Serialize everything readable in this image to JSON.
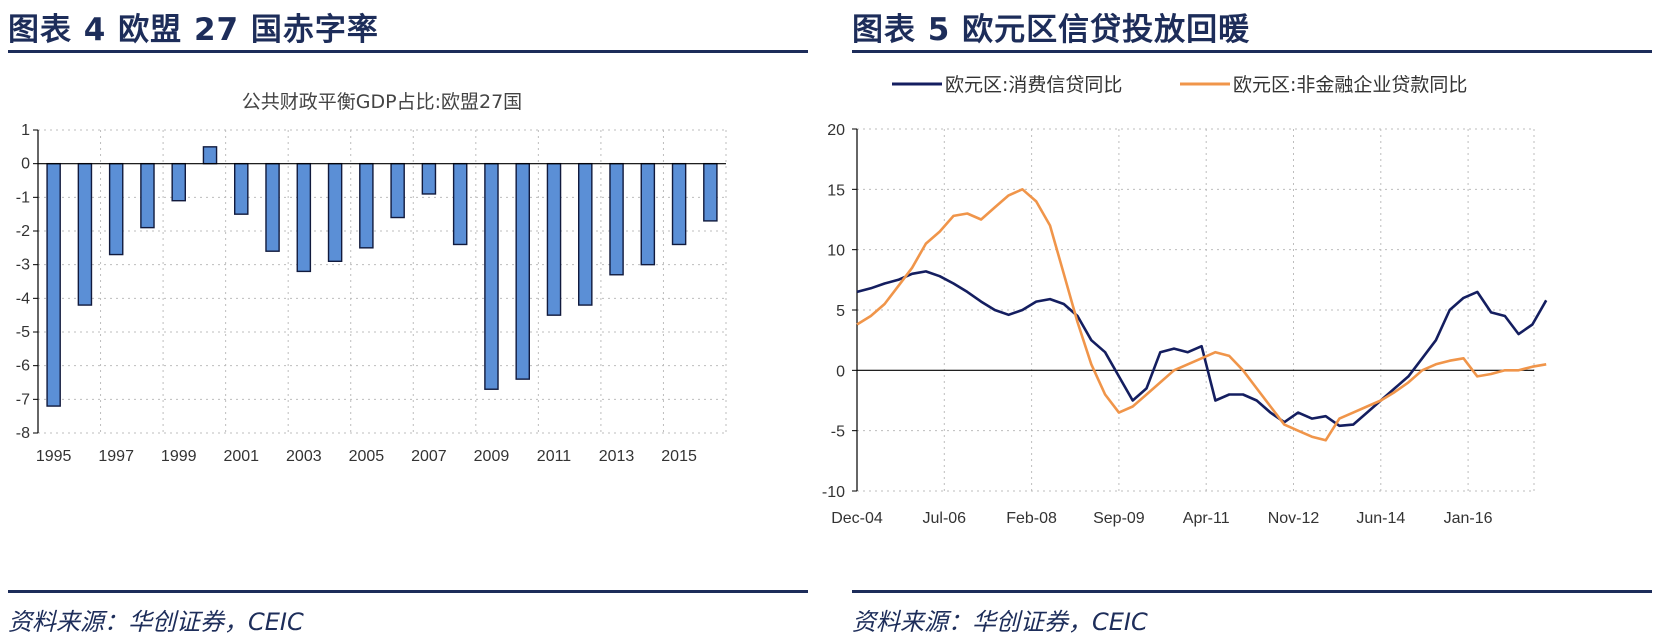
{
  "left": {
    "heading": "图表 4 欧盟 27 国赤字率",
    "source": "资料来源：华创证券，CEIC"
  },
  "right": {
    "heading": "图表 5 欧元区信贷投放回暖",
    "source": "资料来源：华创证券，CEIC"
  },
  "colors": {
    "bar": "#5b8fd6",
    "bar_edge": "#111a3d",
    "navy": "#141e60",
    "orange": "#f0954a",
    "rule": "#1d2d5a"
  },
  "chart_data": [
    {
      "type": "bar",
      "title": "公共财政平衡GDP占比:欧盟27国",
      "categories": [
        "1995",
        "1996",
        "1997",
        "1998",
        "1999",
        "2000",
        "2001",
        "2002",
        "2003",
        "2004",
        "2005",
        "2006",
        "2007",
        "2008",
        "2009",
        "2010",
        "2011",
        "2012",
        "2013",
        "2014",
        "2015",
        "2016"
      ],
      "tick_labels": [
        "1995",
        "1997",
        "1999",
        "2001",
        "2003",
        "2005",
        "2007",
        "2009",
        "2011",
        "2013",
        "2015"
      ],
      "values": [
        -7.2,
        -4.2,
        -2.7,
        -1.9,
        -1.1,
        0.5,
        -1.5,
        -2.6,
        -3.2,
        -2.9,
        -2.5,
        -1.6,
        -0.9,
        -2.4,
        -6.7,
        -6.4,
        -4.5,
        -4.2,
        -3.3,
        -3.0,
        -2.4,
        -1.7
      ],
      "ylim": [
        -8,
        1
      ],
      "yticks": [
        "1",
        "0",
        "-1",
        "-2",
        "-3",
        "-4",
        "-5",
        "-6",
        "-7",
        "-8"
      ],
      "grid": true
    },
    {
      "type": "line",
      "x_ticks": [
        "Dec-04",
        "Jul-06",
        "Feb-08",
        "Sep-09",
        "Apr-11",
        "Nov-12",
        "Jun-14",
        "Jan-16"
      ],
      "ylim": [
        -10,
        20
      ],
      "yticks": [
        "20",
        "15",
        "10",
        "5",
        "0",
        "-5",
        "-10"
      ],
      "grid": true,
      "legend": "top",
      "series": [
        {
          "name": "欧元区:消费信贷同比",
          "x": [
            "2004-12",
            "2005-03",
            "2005-06",
            "2005-09",
            "2005-12",
            "2006-03",
            "2006-06",
            "2006-09",
            "2006-12",
            "2007-03",
            "2007-06",
            "2007-09",
            "2007-12",
            "2008-03",
            "2008-06",
            "2008-09",
            "2008-12",
            "2009-03",
            "2009-06",
            "2009-09",
            "2009-12",
            "2010-03",
            "2010-06",
            "2010-09",
            "2010-12",
            "2011-03",
            "2011-06",
            "2011-09",
            "2011-12",
            "2012-03",
            "2012-06",
            "2012-09",
            "2012-12",
            "2013-03",
            "2013-06",
            "2013-09",
            "2013-12",
            "2014-03",
            "2014-06",
            "2014-09",
            "2014-12",
            "2015-03",
            "2015-06",
            "2015-09",
            "2015-12",
            "2016-03",
            "2016-06",
            "2016-09",
            "2016-12",
            "2017-03",
            "2017-06"
          ],
          "values": [
            6.5,
            6.8,
            7.2,
            7.5,
            8.0,
            8.2,
            7.8,
            7.2,
            6.5,
            5.7,
            5.0,
            4.6,
            5.0,
            5.7,
            5.9,
            5.5,
            4.5,
            2.5,
            1.5,
            -0.5,
            -2.5,
            -1.5,
            1.5,
            1.8,
            1.5,
            2.0,
            -2.5,
            -2.0,
            -2.0,
            -2.5,
            -3.5,
            -4.3,
            -3.5,
            -4.0,
            -3.8,
            -4.6,
            -4.5,
            -3.5,
            -2.5,
            -1.5,
            -0.5,
            1.0,
            2.5,
            5.0,
            6.0,
            6.5,
            4.8,
            4.5,
            3.0,
            3.8,
            5.8
          ]
        },
        {
          "name": "欧元区:非金融企业贷款同比",
          "x": [
            "2004-12",
            "2005-03",
            "2005-06",
            "2005-09",
            "2005-12",
            "2006-03",
            "2006-06",
            "2006-09",
            "2006-12",
            "2007-03",
            "2007-06",
            "2007-09",
            "2007-12",
            "2008-03",
            "2008-06",
            "2008-09",
            "2008-12",
            "2009-03",
            "2009-06",
            "2009-09",
            "2009-12",
            "2010-03",
            "2010-06",
            "2010-09",
            "2010-12",
            "2011-03",
            "2011-06",
            "2011-09",
            "2011-12",
            "2012-03",
            "2012-06",
            "2012-09",
            "2012-12",
            "2013-03",
            "2013-06",
            "2013-09",
            "2013-12",
            "2014-03",
            "2014-06",
            "2014-09",
            "2014-12",
            "2015-03",
            "2015-06",
            "2015-09",
            "2015-12",
            "2016-03",
            "2016-06",
            "2016-09",
            "2016-12",
            "2017-03",
            "2017-06"
          ],
          "values": [
            3.8,
            4.5,
            5.5,
            7.0,
            8.5,
            10.5,
            11.5,
            12.8,
            13.0,
            12.5,
            13.5,
            14.5,
            15.0,
            14.0,
            12.0,
            8.0,
            4.0,
            0.5,
            -2.0,
            -3.5,
            -3.0,
            -2.0,
            -1.0,
            0.0,
            0.5,
            1.0,
            1.5,
            1.2,
            0.0,
            -1.5,
            -3.0,
            -4.5,
            -5.0,
            -5.5,
            -5.8,
            -4.0,
            -3.5,
            -3.0,
            -2.5,
            -1.8,
            -1.0,
            0.0,
            0.5,
            0.8,
            1.0,
            -0.5,
            -0.3,
            0.0,
            0.0,
            0.3,
            0.5
          ]
        }
      ]
    }
  ]
}
